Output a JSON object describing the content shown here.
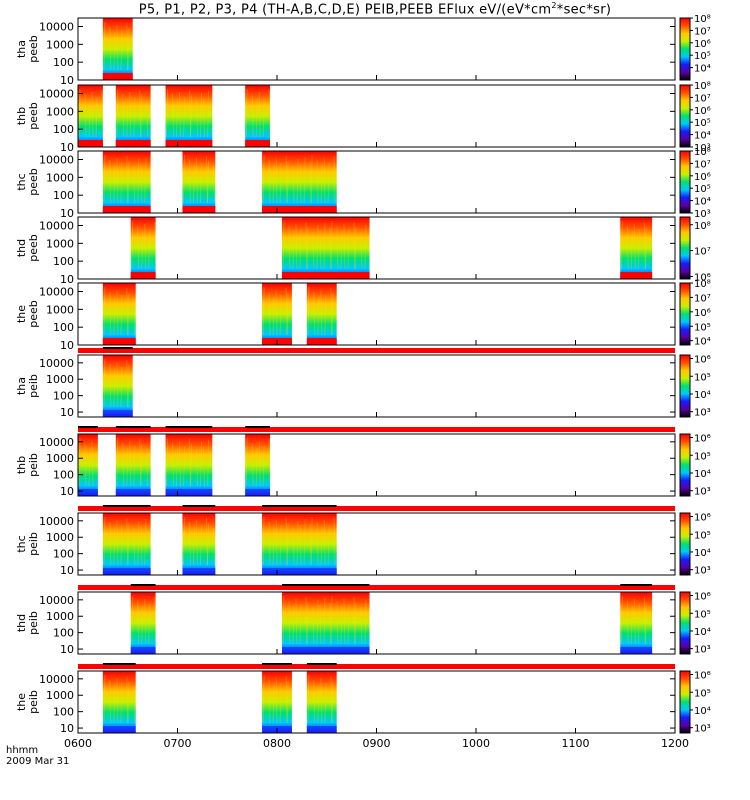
{
  "title": {
    "prefix": "P5, P1, P2, P3, P4 (TH-A,B,C,D,E) PEIB,PEEB EFlux eV/(eV*cm",
    "sup": "2",
    "suffix": "*sec*sr)"
  },
  "x_axis": {
    "unit_label": "hhmm",
    "date_label": "2009 Mar 31",
    "tick_labels": [
      "0600",
      "0700",
      "0800",
      "0900",
      "1000",
      "1100",
      "1200"
    ]
  },
  "chart_data": {
    "type": "heatmap",
    "x_range_hours": [
      6,
      12
    ],
    "y_scale": "log",
    "colormap": [
      "#000000",
      "#5a00a0",
      "#1a1aff",
      "#00c8ff",
      "#00e070",
      "#c8f000",
      "#ffc800",
      "#ff5000",
      "#ff0000"
    ],
    "panels": [
      {
        "ylabel": [
          "tha",
          "peeb"
        ],
        "y_range": [
          10,
          30000
        ],
        "yticks": [
          "10",
          "100",
          "1000",
          "10000"
        ],
        "yticks_at": [
          10,
          100,
          1000,
          10000
        ],
        "colorbar_ticks": [
          "10⁸",
          "10⁷",
          "10⁶",
          "10⁵",
          "10⁴"
        ],
        "colorbar_at": [
          8,
          7,
          6,
          5,
          4
        ],
        "colorbar_range": [
          3,
          8
        ],
        "segments": [
          [
            6.25,
            6.55
          ]
        ],
        "top_bar": false
      },
      {
        "ylabel": [
          "thb",
          "peeb"
        ],
        "y_range": [
          10,
          30000
        ],
        "yticks": [
          "10",
          "100",
          "1000",
          "10000"
        ],
        "yticks_at": [
          10,
          100,
          1000,
          10000
        ],
        "colorbar_ticks": [
          "10⁸",
          "10⁷",
          "10⁶",
          "10⁵",
          "10⁴",
          "10³"
        ],
        "colorbar_at": [
          8,
          7,
          6,
          5,
          4,
          3
        ],
        "colorbar_range": [
          3,
          8
        ],
        "segments": [
          [
            6.0,
            6.25
          ],
          [
            6.38,
            6.73
          ],
          [
            6.88,
            7.35
          ],
          [
            7.68,
            7.93
          ]
        ],
        "top_bar": false
      },
      {
        "ylabel": [
          "thc",
          "peeb"
        ],
        "y_range": [
          10,
          30000
        ],
        "yticks": [
          "10",
          "100",
          "1000",
          "10000"
        ],
        "yticks_at": [
          10,
          100,
          1000,
          10000
        ],
        "colorbar_ticks": [
          "10⁸",
          "10⁷",
          "10⁶",
          "10⁵",
          "10⁴",
          "10³"
        ],
        "colorbar_at": [
          8,
          7,
          6,
          5,
          4,
          3
        ],
        "colorbar_range": [
          3,
          8
        ],
        "segments": [
          [
            6.25,
            6.73
          ],
          [
            7.05,
            7.38
          ],
          [
            7.85,
            8.6
          ]
        ],
        "top_bar": false
      },
      {
        "ylabel": [
          "thd",
          "peeb"
        ],
        "y_range": [
          10,
          30000
        ],
        "yticks": [
          "10",
          "100",
          "1000",
          "10000"
        ],
        "yticks_at": [
          10,
          100,
          1000,
          10000
        ],
        "colorbar_ticks": [
          "10⁸",
          "10⁷",
          "10⁶"
        ],
        "colorbar_at": [
          8,
          7,
          6
        ],
        "colorbar_range": [
          5.9,
          8.3
        ],
        "segments": [
          [
            6.53,
            6.78
          ],
          [
            8.05,
            8.93
          ],
          [
            11.45,
            11.77
          ]
        ],
        "top_bar": false
      },
      {
        "ylabel": [
          "the",
          "peeb"
        ],
        "y_range": [
          10,
          30000
        ],
        "yticks": [
          "10",
          "100",
          "1000",
          "10000"
        ],
        "yticks_at": [
          10,
          100,
          1000,
          10000
        ],
        "colorbar_ticks": [
          "10⁸",
          "10⁷",
          "10⁶",
          "10⁵",
          "10⁴"
        ],
        "colorbar_at": [
          8,
          7,
          6,
          5,
          4
        ],
        "colorbar_range": [
          3.7,
          8
        ],
        "segments": [
          [
            6.25,
            6.58
          ],
          [
            7.85,
            8.15
          ],
          [
            8.3,
            8.6
          ]
        ],
        "top_bar": false
      },
      {
        "ylabel": [
          "tha",
          "peib"
        ],
        "y_range": [
          5,
          30000
        ],
        "yticks": [
          "10",
          "100",
          "1000",
          "10000"
        ],
        "yticks_at": [
          10,
          100,
          1000,
          10000
        ],
        "colorbar_ticks": [
          "10⁶",
          "10⁵",
          "10⁴",
          "10³"
        ],
        "colorbar_at": [
          6,
          5,
          4,
          3
        ],
        "colorbar_range": [
          2.7,
          6.2
        ],
        "segments": [
          [
            6.25,
            6.55
          ]
        ],
        "top_bar": true
      },
      {
        "ylabel": [
          "thb",
          "peib"
        ],
        "y_range": [
          5,
          30000
        ],
        "yticks": [
          "10",
          "100",
          "1000",
          "10000"
        ],
        "yticks_at": [
          10,
          100,
          1000,
          10000
        ],
        "colorbar_ticks": [
          "10⁶",
          "10⁵",
          "10⁴",
          "10³"
        ],
        "colorbar_at": [
          6,
          5,
          4,
          3
        ],
        "colorbar_range": [
          2.7,
          6.2
        ],
        "segments": [
          [
            6.0,
            6.2
          ],
          [
            6.38,
            6.73
          ],
          [
            6.88,
            7.35
          ],
          [
            7.68,
            7.93
          ]
        ],
        "top_bar": true
      },
      {
        "ylabel": [
          "thc",
          "peib"
        ],
        "y_range": [
          5,
          30000
        ],
        "yticks": [
          "10",
          "100",
          "1000",
          "10000"
        ],
        "yticks_at": [
          10,
          100,
          1000,
          10000
        ],
        "colorbar_ticks": [
          "10⁶",
          "10⁵",
          "10⁴",
          "10³"
        ],
        "colorbar_at": [
          6,
          5,
          4,
          3
        ],
        "colorbar_range": [
          2.7,
          6.2
        ],
        "segments": [
          [
            6.25,
            6.73
          ],
          [
            7.05,
            7.38
          ],
          [
            7.85,
            8.6
          ]
        ],
        "top_bar": true
      },
      {
        "ylabel": [
          "thd",
          "peib"
        ],
        "y_range": [
          5,
          30000
        ],
        "yticks": [
          "10",
          "100",
          "1000",
          "10000"
        ],
        "yticks_at": [
          10,
          100,
          1000,
          10000
        ],
        "colorbar_ticks": [
          "10⁶",
          "10⁵",
          "10⁴",
          "10³"
        ],
        "colorbar_at": [
          6,
          5,
          4,
          3
        ],
        "colorbar_range": [
          2.7,
          6.2
        ],
        "segments": [
          [
            6.53,
            6.78
          ],
          [
            8.05,
            8.93
          ],
          [
            11.45,
            11.77
          ]
        ],
        "top_bar": true
      },
      {
        "ylabel": [
          "the",
          "peib"
        ],
        "y_range": [
          5,
          30000
        ],
        "yticks": [
          "10",
          "100",
          "1000",
          "10000"
        ],
        "yticks_at": [
          10,
          100,
          1000,
          10000
        ],
        "colorbar_ticks": [
          "10⁶",
          "10⁵",
          "10⁴",
          "10³"
        ],
        "colorbar_at": [
          6,
          5,
          4,
          3
        ],
        "colorbar_range": [
          2.7,
          6.2
        ],
        "segments": [
          [
            6.25,
            6.58
          ],
          [
            7.85,
            8.15
          ],
          [
            8.3,
            8.6
          ]
        ],
        "top_bar": true
      }
    ]
  }
}
